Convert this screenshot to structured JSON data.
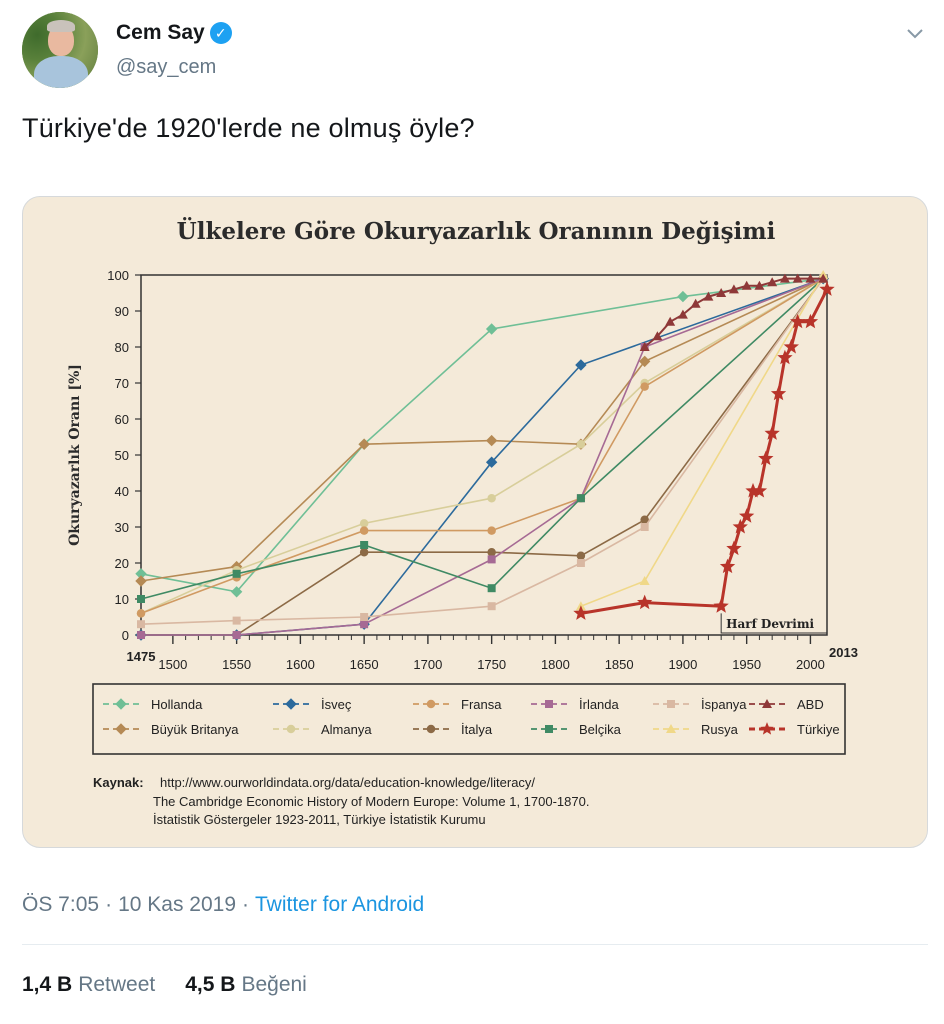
{
  "user": {
    "name": "Cem Say",
    "handle": "@say_cem"
  },
  "tweet": {
    "text": "Türkiye'de 1920'lerde ne olmuş öyle?",
    "time": "ÖS 7:05",
    "date": "10 Kas 2019",
    "source": "Twitter for Android",
    "separator": "·"
  },
  "stats": {
    "retweets": "1,4 B",
    "retweets_label": "Retweet",
    "likes": "4,5 B",
    "likes_label": "Beğeni"
  },
  "chart_data": {
    "type": "line",
    "title": "Ülkelere Göre Okuryazarlık Oranının Değişimi",
    "ylabel": "Okuryazarlık Oranı [%]",
    "xlabel": "",
    "xlim": [
      1475,
      2013
    ],
    "ylim": [
      0,
      100
    ],
    "x_tick_labels": [
      "1475",
      "1500",
      "1550",
      "1600",
      "1650",
      "1700",
      "1750",
      "1800",
      "1850",
      "1900",
      "1950",
      "2000",
      "2013"
    ],
    "x_ticks": [
      1475,
      1500,
      1550,
      1600,
      1650,
      1700,
      1750,
      1800,
      1850,
      1900,
      1950,
      2000,
      2013
    ],
    "y_ticks": [
      0,
      10,
      20,
      30,
      40,
      50,
      60,
      70,
      80,
      90,
      100
    ],
    "grid": false,
    "legend_position": "bottom",
    "annotation": "Harf Devrimi",
    "series": [
      {
        "name": "Hollanda",
        "color": "#6fbf96",
        "marker": "diamond",
        "points": [
          [
            1475,
            17
          ],
          [
            1550,
            12
          ],
          [
            1650,
            53
          ],
          [
            1750,
            85
          ],
          [
            1900,
            94
          ],
          [
            2010,
            99
          ]
        ]
      },
      {
        "name": "Büyük Britanya",
        "color": "#b58a55",
        "marker": "diamond",
        "points": [
          [
            1475,
            15
          ],
          [
            1550,
            19
          ],
          [
            1650,
            53
          ],
          [
            1750,
            54
          ],
          [
            1820,
            53
          ],
          [
            1870,
            76
          ],
          [
            2010,
            99
          ]
        ]
      },
      {
        "name": "İsveç",
        "color": "#2c6a9c",
        "marker": "diamond",
        "points": [
          [
            1475,
            0
          ],
          [
            1550,
            0
          ],
          [
            1650,
            3
          ],
          [
            1750,
            48
          ],
          [
            1820,
            75
          ],
          [
            2010,
            99
          ]
        ]
      },
      {
        "name": "Almanya",
        "color": "#d8ce9a",
        "marker": "circle",
        "points": [
          [
            1475,
            6
          ],
          [
            1550,
            18
          ],
          [
            1650,
            31
          ],
          [
            1750,
            38
          ],
          [
            1820,
            53
          ],
          [
            1870,
            70
          ],
          [
            2010,
            99
          ]
        ]
      },
      {
        "name": "Fransa",
        "color": "#d09a62",
        "marker": "circle",
        "points": [
          [
            1475,
            6
          ],
          [
            1550,
            16
          ],
          [
            1650,
            29
          ],
          [
            1750,
            29
          ],
          [
            1820,
            38
          ],
          [
            1870,
            69
          ],
          [
            2010,
            99
          ]
        ]
      },
      {
        "name": "İtalya",
        "color": "#8c6a46",
        "marker": "circle",
        "points": [
          [
            1475,
            0
          ],
          [
            1550,
            0
          ],
          [
            1650,
            23
          ],
          [
            1750,
            23
          ],
          [
            1820,
            22
          ],
          [
            1870,
            32
          ],
          [
            2010,
            99
          ]
        ]
      },
      {
        "name": "İrlanda",
        "color": "#a66a94",
        "marker": "square",
        "points": [
          [
            1475,
            0
          ],
          [
            1550,
            0
          ],
          [
            1650,
            3
          ],
          [
            1750,
            21
          ],
          [
            1820,
            38
          ],
          [
            1870,
            80
          ],
          [
            2010,
            99
          ]
        ]
      },
      {
        "name": "Belçika",
        "color": "#3f8a64",
        "marker": "square",
        "points": [
          [
            1475,
            10
          ],
          [
            1550,
            17
          ],
          [
            1650,
            25
          ],
          [
            1750,
            13
          ],
          [
            1820,
            38
          ],
          [
            2010,
            99
          ]
        ]
      },
      {
        "name": "İspanya",
        "color": "#d9b8a2",
        "marker": "square",
        "points": [
          [
            1475,
            3
          ],
          [
            1550,
            4
          ],
          [
            1650,
            5
          ],
          [
            1750,
            8
          ],
          [
            1820,
            20
          ],
          [
            1870,
            30
          ],
          [
            2010,
            99
          ]
        ]
      },
      {
        "name": "Rusya",
        "color": "#f0d888",
        "marker": "triangle",
        "points": [
          [
            1820,
            8
          ],
          [
            1870,
            15
          ],
          [
            2010,
            100
          ]
        ]
      },
      {
        "name": "ABD",
        "color": "#8e3838",
        "marker": "triangle",
        "points": [
          [
            1870,
            80
          ],
          [
            1880,
            83
          ],
          [
            1890,
            87
          ],
          [
            1900,
            89
          ],
          [
            1910,
            92
          ],
          [
            1920,
            94
          ],
          [
            1930,
            95
          ],
          [
            1940,
            96
          ],
          [
            1950,
            97
          ],
          [
            1960,
            97
          ],
          [
            1970,
            98
          ],
          [
            1980,
            99
          ],
          [
            1990,
            99
          ],
          [
            2000,
            99
          ],
          [
            2010,
            99
          ]
        ]
      },
      {
        "name": "Türkiye",
        "color": "#b8342a",
        "marker": "star",
        "points": [
          [
            1820,
            6
          ],
          [
            1870,
            9
          ],
          [
            1930,
            8
          ],
          [
            1935,
            19
          ],
          [
            1940,
            24
          ],
          [
            1945,
            30
          ],
          [
            1950,
            33
          ],
          [
            1955,
            40
          ],
          [
            1960,
            40
          ],
          [
            1965,
            49
          ],
          [
            1970,
            56
          ],
          [
            1975,
            67
          ],
          [
            1980,
            77
          ],
          [
            1985,
            80
          ],
          [
            1990,
            87
          ],
          [
            2000,
            87
          ],
          [
            2013,
            96
          ]
        ]
      }
    ],
    "source_label": "Kaynak:",
    "source_lines": [
      "http://www.ourworldindata.org/data/education-knowledge/literacy/",
      "The Cambridge Economic History of Modern Europe: Volume 1, 1700-1870.",
      "İstatistik Göstergeler 1923-2011, Türkiye İstatistik Kurumu"
    ]
  }
}
